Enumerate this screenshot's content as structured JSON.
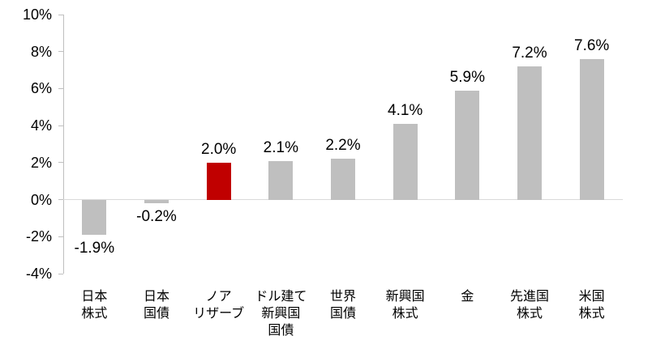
{
  "chart_data": {
    "type": "bar",
    "title": "",
    "xlabel": "",
    "ylabel": "",
    "grid": false,
    "legend": null,
    "categories": [
      "日本\n株式",
      "日本\n国債",
      "ノア\nリザーブ",
      "ドル建て\n新興国\n国債",
      "世界\n国債",
      "新興国\n株式",
      "金",
      "先進国\n株式",
      "米国\n株式"
    ],
    "values": [
      -1.9,
      -0.2,
      2.0,
      2.1,
      2.2,
      4.1,
      5.9,
      7.2,
      7.6
    ],
    "value_labels": [
      "-1.9%",
      "-0.2%",
      "2.0%",
      "2.1%",
      "2.2%",
      "4.1%",
      "5.9%",
      "7.2%",
      "7.6%"
    ],
    "highlight_index": 2,
    "colors": {
      "bar": "#bfbfbf",
      "highlight": "#c00000",
      "axis": "#bfbfbf",
      "zero_line": "#d9d9d9",
      "text": "#000000"
    },
    "ylim": [
      -4,
      10
    ],
    "yticks": [
      10,
      8,
      6,
      4,
      2,
      0,
      -2,
      -4
    ],
    "ytick_labels": [
      "10%",
      "8%",
      "6%",
      "4%",
      "2%",
      "0%",
      "-2%",
      "-4%"
    ]
  }
}
